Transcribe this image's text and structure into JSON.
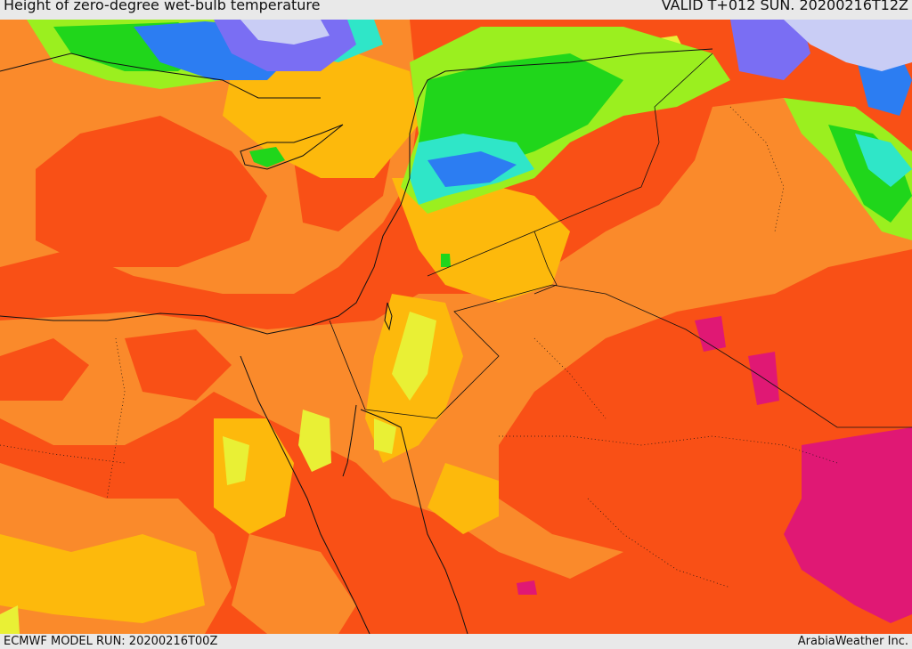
{
  "header": {
    "title": "Height of zero-degree wet-bulb temperature",
    "valid": "VALID T+012 SUN. 20200216T12Z"
  },
  "footer": {
    "model_run": "ECMWF MODEL RUN: 20200216T00Z",
    "credit": "ArabiaWeather Inc."
  },
  "palette": {
    "dark_orange": "#f95016",
    "orange": "#fa8a2b",
    "amber": "#fdb90c",
    "yellow": "#e9f035",
    "lime": "#9bef1f",
    "green": "#20d61b",
    "cyan": "#2fe6c8",
    "blue": "#2c7df2",
    "violet": "#7a6ef3",
    "lavender": "#c9cdf5",
    "magenta": "#e01874",
    "border": "#111111"
  }
}
